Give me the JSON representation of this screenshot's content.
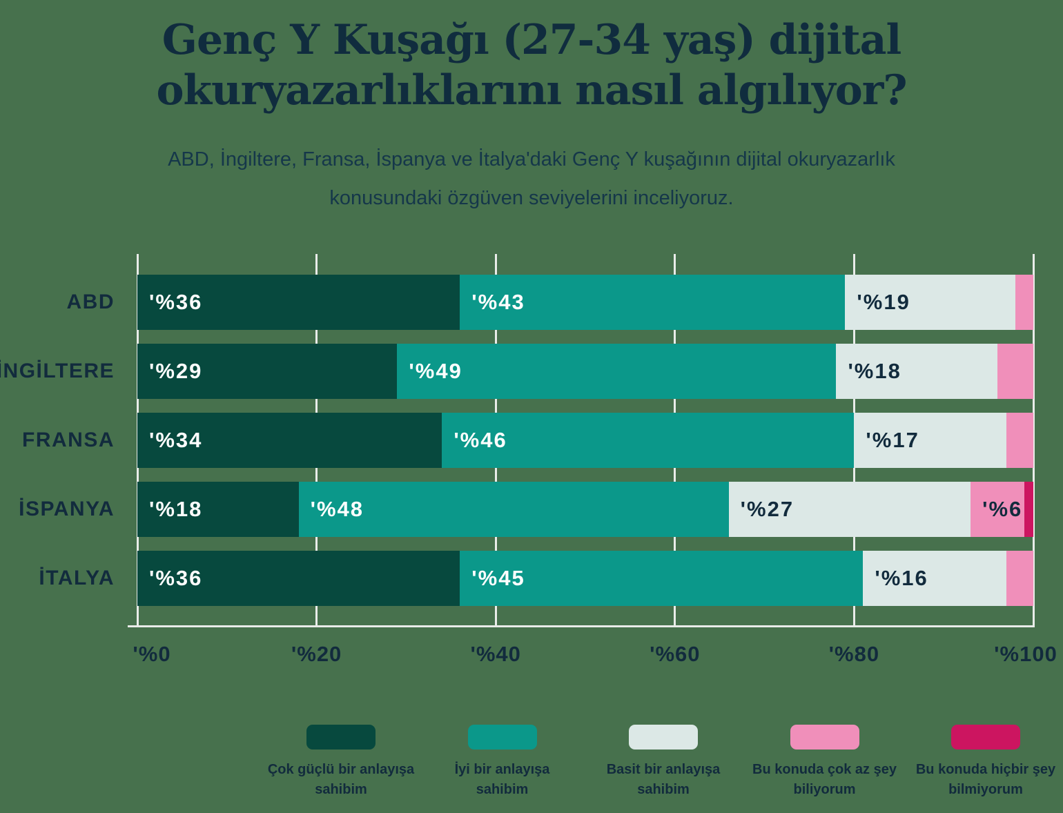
{
  "page": {
    "background_color": "#47714D",
    "text_color": "#122B3D",
    "gridline_color": "#E9ECE9"
  },
  "title": "Genç Y Kuşağı (27-34 yaş) dijital okuryazarlıklarını nasıl algılıyor?",
  "subtitle": "ABD, İngiltere, Fransa, İspanya ve İtalya'daki Genç Y kuşağının dijital okuryazarlık konusundaki özgüven seviyelerini inceliyoruz.",
  "chart_data": {
    "type": "bar",
    "orientation": "horizontal",
    "stacked": true,
    "title": "Genç Y Kuşağı (27-34 yaş) dijital okuryazarlıklarını nasıl algılıyor?",
    "categories": [
      "ABD",
      "İNGİLTERE",
      "FRANSA",
      "İSPANYA",
      "İTALYA"
    ],
    "series": [
      {
        "name": "Çok güçlü bir anlayışa sahibim",
        "color": "#07493E",
        "label_color": "#FFFFFF",
        "values": [
          36,
          29,
          34,
          18,
          36
        ]
      },
      {
        "name": "İyi bir anlayışa sahibim",
        "color": "#0B988A",
        "label_color": "#FFFFFF",
        "values": [
          43,
          49,
          46,
          48,
          45
        ]
      },
      {
        "name": "Basit bir anlayışa sahibim",
        "color": "#DCE8E6",
        "label_color": "#122B3D",
        "values": [
          19,
          18,
          17,
          27,
          16
        ]
      },
      {
        "name": "Bu konuda çok az şey biliyorum",
        "color": "#F08FBA",
        "label_color": "#122B3D",
        "values": [
          2,
          4,
          3,
          6,
          3
        ]
      },
      {
        "name": "Bu konuda hiçbir şey bilmiyorum",
        "color": "#CC1560",
        "label_color": "#FFFFFF",
        "values": [
          0,
          0,
          0,
          1,
          0
        ]
      }
    ],
    "value_label_prefix": "'%",
    "value_label_min_value": 6,
    "x_tick_values": [
      0,
      20,
      40,
      60,
      80,
      100
    ],
    "x_tick_labels": [
      "'%0",
      "'%20",
      "'%40",
      "'%60",
      "'%80",
      "'%100"
    ],
    "xlim": [
      0,
      100
    ],
    "grid": true,
    "legend_position": "bottom"
  }
}
